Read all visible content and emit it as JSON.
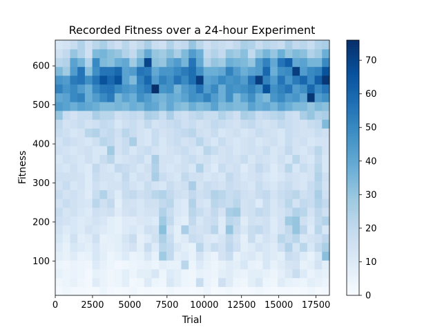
{
  "chart_data": {
    "type": "heatmap",
    "title": "Recorded Fitness over a 24-hour Experiment",
    "xlabel": "Trial",
    "ylabel": "Fitness",
    "xlim": [
      0,
      18400
    ],
    "ylim": [
      12,
      666
    ],
    "x_ticks": [
      0,
      2500,
      5000,
      7500,
      10000,
      12500,
      15000,
      17500
    ],
    "y_ticks": [
      100,
      200,
      300,
      400,
      500,
      600
    ],
    "colormap": "Blues",
    "colorbar": {
      "min": 0,
      "max": 76,
      "ticks": [
        0,
        10,
        20,
        30,
        40,
        50,
        60,
        70
      ]
    },
    "grid": false,
    "legend": "none",
    "x_bins": 37,
    "y_bins": 29,
    "values": [
      [
        2,
        3,
        2,
        2,
        1,
        1,
        4,
        2,
        1,
        2,
        3,
        1,
        2,
        1,
        1,
        3,
        2,
        2,
        1,
        2,
        4,
        1,
        2,
        3,
        2,
        1,
        2,
        3,
        2,
        1,
        2,
        2,
        1,
        2,
        3,
        1,
        2
      ],
      [
        3,
        4,
        6,
        3,
        2,
        9,
        5,
        3,
        4,
        8,
        2,
        3,
        10,
        4,
        3,
        12,
        8,
        4,
        3,
        18,
        5,
        3,
        16,
        9,
        4,
        3,
        8,
        11,
        4,
        3,
        9,
        6,
        5,
        4,
        8,
        6,
        4
      ],
      [
        6,
        4,
        5,
        4,
        2,
        6,
        5,
        3,
        4,
        8,
        4,
        8,
        8,
        12,
        4,
        10,
        8,
        4,
        3,
        6,
        5,
        4,
        8,
        9,
        6,
        5,
        8,
        8,
        6,
        4,
        7,
        11,
        18,
        10,
        5,
        8,
        6
      ],
      [
        4,
        3,
        5,
        4,
        3,
        10,
        6,
        4,
        2,
        3,
        4,
        5,
        6,
        4,
        8,
        6,
        6,
        22,
        4,
        10,
        6,
        4,
        6,
        9,
        8,
        12,
        6,
        5,
        12,
        6,
        9,
        13,
        14,
        6,
        8,
        14,
        8
      ],
      [
        8,
        6,
        9,
        5,
        6,
        12,
        8,
        4,
        6,
        10,
        5,
        6,
        12,
        6,
        28,
        20,
        8,
        10,
        6,
        14,
        8,
        5,
        14,
        18,
        6,
        10,
        11,
        8,
        12,
        9,
        8,
        18,
        16,
        10,
        6,
        12,
        32
      ],
      [
        10,
        6,
        12,
        10,
        8,
        12,
        7,
        6,
        8,
        11,
        14,
        8,
        18,
        10,
        22,
        20,
        12,
        8,
        6,
        22,
        12,
        18,
        14,
        21,
        16,
        8,
        10,
        14,
        12,
        9,
        16,
        24,
        13,
        22,
        12,
        20,
        26
      ],
      [
        12,
        8,
        15,
        8,
        9,
        16,
        6,
        7,
        8,
        13,
        18,
        7,
        10,
        15,
        25,
        18,
        8,
        10,
        18,
        16,
        11,
        10,
        13,
        20,
        14,
        7,
        18,
        10,
        14,
        11,
        22,
        18,
        22,
        12,
        14,
        16,
        21
      ],
      [
        14,
        10,
        12,
        10,
        14,
        12,
        10,
        8,
        6,
        10,
        12,
        9,
        16,
        14,
        32,
        14,
        8,
        26,
        16,
        14,
        16,
        22,
        10,
        30,
        18,
        12,
        18,
        20,
        16,
        10,
        14,
        20,
        30,
        21,
        10,
        22,
        12
      ],
      [
        16,
        14,
        12,
        10,
        11,
        14,
        12,
        8,
        6,
        10,
        9,
        11,
        12,
        10,
        28,
        20,
        10,
        8,
        20,
        12,
        16,
        18,
        10,
        22,
        20,
        9,
        15,
        14,
        16,
        10,
        14,
        28,
        30,
        16,
        12,
        20,
        24
      ],
      [
        18,
        13,
        15,
        12,
        10,
        16,
        14,
        16,
        9,
        14,
        16,
        12,
        14,
        14,
        24,
        18,
        12,
        10,
        22,
        18,
        14,
        20,
        14,
        26,
        28,
        14,
        16,
        20,
        18,
        12,
        14,
        18,
        24,
        22,
        14,
        21,
        16
      ],
      [
        14,
        18,
        15,
        13,
        12,
        22,
        16,
        20,
        8,
        15,
        14,
        12,
        16,
        15,
        20,
        22,
        12,
        10,
        24,
        14,
        12,
        22,
        20,
        18,
        22,
        14,
        16,
        10,
        18,
        12,
        16,
        22,
        14,
        20,
        18,
        24,
        20
      ],
      [
        18,
        14,
        16,
        13,
        9,
        18,
        24,
        16,
        10,
        18,
        20,
        16,
        18,
        22,
        24,
        20,
        16,
        14,
        20,
        16,
        18,
        24,
        22,
        18,
        20,
        16,
        14,
        18,
        20,
        14,
        18,
        20,
        22,
        16,
        18,
        26,
        16
      ],
      [
        14,
        18,
        12,
        14,
        10,
        16,
        12,
        14,
        14,
        18,
        14,
        12,
        18,
        14,
        12,
        18,
        14,
        16,
        26,
        14,
        18,
        16,
        14,
        18,
        16,
        14,
        12,
        18,
        14,
        12,
        16,
        18,
        14,
        12,
        18,
        22,
        14
      ],
      [
        16,
        16,
        15,
        14,
        10,
        18,
        14,
        14,
        12,
        20,
        12,
        16,
        14,
        26,
        18,
        14,
        12,
        20,
        16,
        15,
        12,
        14,
        12,
        20,
        16,
        12,
        14,
        16,
        12,
        10,
        12,
        16,
        14,
        12,
        14,
        24,
        16
      ],
      [
        14,
        12,
        16,
        12,
        10,
        20,
        14,
        12,
        20,
        18,
        16,
        12,
        16,
        24,
        14,
        12,
        14,
        16,
        12,
        24,
        14,
        10,
        18,
        14,
        16,
        10,
        14,
        20,
        16,
        10,
        14,
        22,
        12,
        18,
        14,
        22,
        12
      ],
      [
        12,
        16,
        14,
        12,
        16,
        12,
        18,
        22,
        12,
        14,
        16,
        18,
        12,
        26,
        14,
        14,
        12,
        16,
        18,
        14,
        16,
        12,
        14,
        16,
        14,
        18,
        12,
        16,
        14,
        12,
        16,
        12,
        22,
        14,
        12,
        20,
        12
      ],
      [
        16,
        14,
        12,
        14,
        16,
        12,
        12,
        28,
        14,
        18,
        12,
        16,
        18,
        14,
        12,
        14,
        16,
        18,
        14,
        12,
        22,
        18,
        14,
        16,
        12,
        14,
        16,
        14,
        18,
        12,
        14,
        20,
        14,
        12,
        16,
        22,
        14
      ],
      [
        14,
        18,
        16,
        14,
        12,
        16,
        22,
        20,
        14,
        18,
        26,
        14,
        12,
        18,
        12,
        16,
        18,
        14,
        16,
        22,
        16,
        12,
        18,
        14,
        12,
        14,
        16,
        12,
        14,
        16,
        12,
        18,
        14,
        16,
        12,
        14,
        14
      ],
      [
        18,
        16,
        12,
        14,
        22,
        24,
        18,
        20,
        16,
        22,
        18,
        14,
        12,
        18,
        14,
        16,
        18,
        20,
        22,
        16,
        14,
        18,
        12,
        14,
        16,
        12,
        14,
        18,
        16,
        14,
        12,
        18,
        16,
        14,
        14,
        18,
        16
      ],
      [
        20,
        14,
        16,
        18,
        14,
        16,
        20,
        18,
        12,
        16,
        18,
        14,
        20,
        14,
        16,
        18,
        20,
        16,
        18,
        14,
        16,
        20,
        18,
        16,
        14,
        18,
        20,
        16,
        14,
        16,
        20,
        18,
        16,
        14,
        18,
        20,
        34
      ],
      [
        30,
        18,
        14,
        18,
        18,
        26,
        22,
        22,
        16,
        18,
        20,
        18,
        26,
        24,
        18,
        26,
        18,
        16,
        20,
        22,
        18,
        18,
        24,
        20,
        16,
        26,
        24,
        18,
        20,
        22,
        24,
        18,
        16,
        26,
        30,
        24,
        26
      ],
      [
        44,
        42,
        38,
        42,
        40,
        38,
        34,
        34,
        36,
        34,
        38,
        36,
        42,
        40,
        34,
        40,
        34,
        32,
        38,
        34,
        36,
        42,
        34,
        36,
        34,
        34,
        42,
        38,
        40,
        36,
        42,
        38,
        34,
        34,
        30,
        34,
        32
      ],
      [
        40,
        42,
        50,
        52,
        38,
        44,
        50,
        54,
        36,
        42,
        38,
        48,
        44,
        38,
        36,
        40,
        38,
        42,
        48,
        46,
        52,
        44,
        38,
        48,
        34,
        42,
        48,
        38,
        34,
        46,
        50,
        44,
        46,
        40,
        74,
        44,
        48
      ],
      [
        52,
        46,
        50,
        44,
        38,
        50,
        55,
        56,
        50,
        46,
        44,
        50,
        54,
        80,
        46,
        48,
        36,
        44,
        48,
        56,
        44,
        50,
        38,
        48,
        46,
        48,
        52,
        46,
        66,
        48,
        52,
        56,
        44,
        48,
        60,
        50,
        56
      ],
      [
        46,
        44,
        54,
        56,
        48,
        56,
        66,
        60,
        66,
        42,
        34,
        52,
        60,
        44,
        52,
        48,
        56,
        50,
        58,
        72,
        42,
        44,
        50,
        46,
        48,
        44,
        56,
        72,
        52,
        44,
        56,
        46,
        54,
        60,
        50,
        62,
        74
      ],
      [
        34,
        28,
        44,
        56,
        32,
        48,
        56,
        56,
        60,
        42,
        44,
        56,
        54,
        40,
        46,
        46,
        50,
        54,
        58,
        48,
        38,
        38,
        40,
        52,
        44,
        38,
        42,
        44,
        60,
        38,
        48,
        50,
        72,
        44,
        50,
        52,
        66
      ],
      [
        22,
        24,
        42,
        36,
        24,
        50,
        34,
        32,
        38,
        40,
        28,
        38,
        70,
        32,
        30,
        40,
        44,
        36,
        56,
        40,
        24,
        30,
        28,
        38,
        36,
        34,
        30,
        44,
        52,
        40,
        56,
        62,
        40,
        42,
        36,
        36,
        50
      ],
      [
        16,
        20,
        30,
        24,
        16,
        34,
        36,
        32,
        30,
        24,
        20,
        30,
        40,
        30,
        28,
        32,
        26,
        34,
        44,
        38,
        20,
        24,
        20,
        30,
        28,
        32,
        20,
        30,
        36,
        30,
        38,
        30,
        34,
        32,
        24,
        28,
        38
      ],
      [
        12,
        14,
        18,
        24,
        16,
        22,
        26,
        20,
        16,
        22,
        16,
        20,
        26,
        18,
        16,
        24,
        18,
        20,
        30,
        22,
        16,
        20,
        18,
        16,
        20,
        26,
        24,
        18,
        22,
        20,
        18,
        26,
        20,
        22,
        18,
        24,
        26
      ]
    ]
  }
}
